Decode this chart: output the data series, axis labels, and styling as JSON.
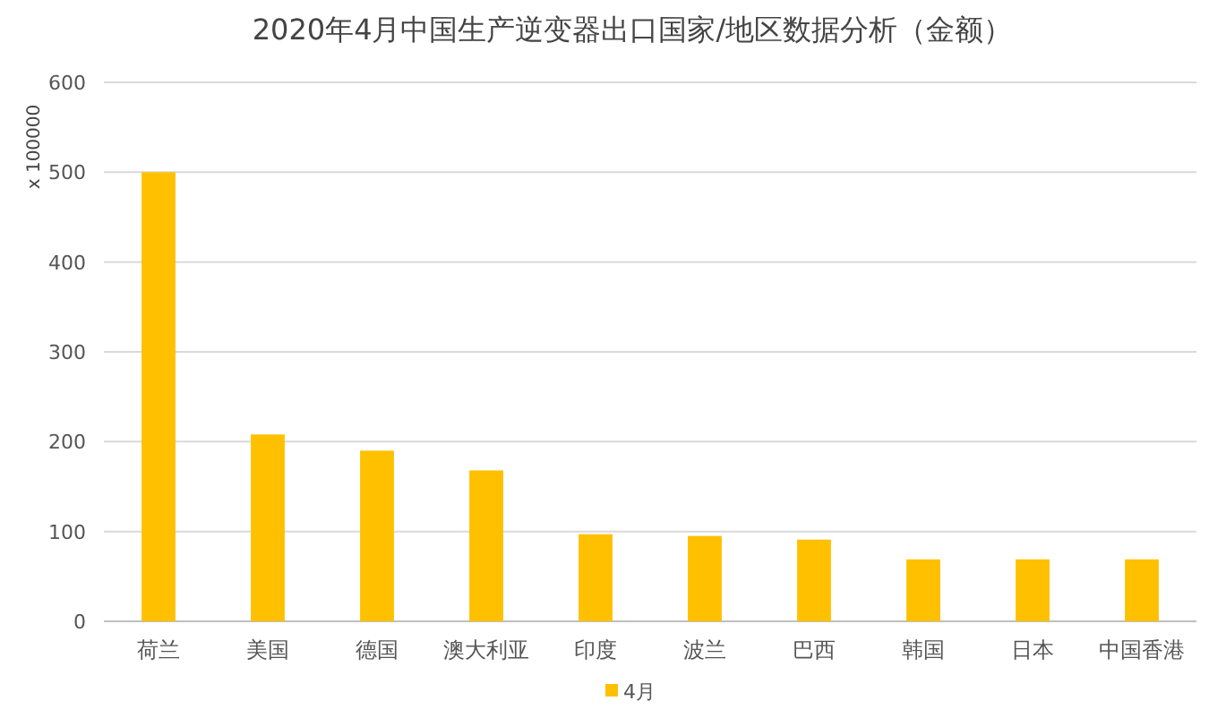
{
  "chart_data": {
    "type": "bar",
    "title": "2020年4月中国生产逆变器出口国家/地区数据分析（金额）",
    "ylabel": "x 100000",
    "categories": [
      "荷兰",
      "美国",
      "德国",
      "澳大利亚",
      "印度",
      "波兰",
      "巴西",
      "韩国",
      "日本",
      "中国香港"
    ],
    "series": [
      {
        "name": "4月",
        "color": "#ffc000",
        "values": [
          500,
          208,
          190,
          168,
          97,
          95,
          91,
          69,
          69,
          69
        ]
      }
    ],
    "ylim": [
      0,
      600
    ],
    "yticks": [
      0,
      100,
      200,
      300,
      400,
      500,
      600
    ],
    "grid": "y",
    "legend": "bottom"
  }
}
